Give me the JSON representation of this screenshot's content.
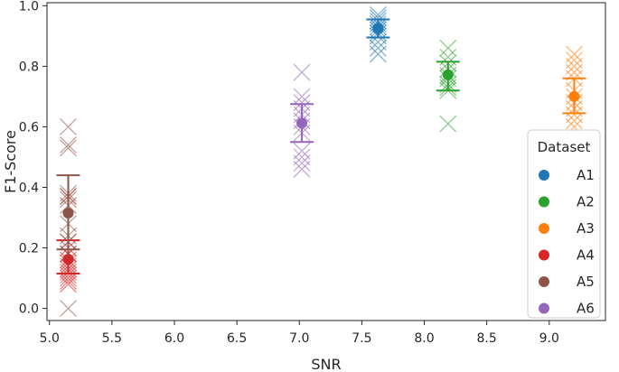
{
  "chart_data": {
    "type": "scatter",
    "title": "",
    "xlabel": "SNR",
    "ylabel": "F1-Score",
    "xlim": [
      4.98,
      9.45
    ],
    "ylim": [
      -0.04,
      1.01
    ],
    "xticks": [
      "5.0",
      "5.5",
      "6.0",
      "6.5",
      "7.0",
      "7.5",
      "8.0",
      "8.5",
      "9.0"
    ],
    "yticks": [
      "0.0",
      "0.2",
      "0.4",
      "0.6",
      "0.8",
      "1.0"
    ],
    "grid": false,
    "legend": {
      "title": "Dataset",
      "placement": "right"
    },
    "series": [
      {
        "name": "A1",
        "color": "#1f77b4",
        "x": 7.63,
        "mean": 0.925,
        "err_low": 0.895,
        "err_high": 0.955,
        "points": [
          0.97,
          0.96,
          0.95,
          0.94,
          0.93,
          0.92,
          0.91,
          0.9,
          0.88,
          0.86,
          0.84
        ]
      },
      {
        "name": "A2",
        "color": "#2ca02c",
        "x": 8.19,
        "mean": 0.772,
        "err_low": 0.72,
        "err_high": 0.815,
        "points": [
          0.86,
          0.83,
          0.81,
          0.79,
          0.77,
          0.76,
          0.74,
          0.73,
          0.72,
          0.61
        ]
      },
      {
        "name": "A3",
        "color": "#ff7f0e",
        "x": 9.2,
        "mean": 0.7,
        "err_low": 0.645,
        "err_high": 0.76,
        "points": [
          0.84,
          0.82,
          0.8,
          0.78,
          0.76,
          0.72,
          0.7,
          0.68,
          0.66,
          0.64,
          0.62,
          0.6
        ]
      },
      {
        "name": "A4",
        "color": "#d62728",
        "x": 5.15,
        "mean": 0.163,
        "err_low": 0.115,
        "err_high": 0.225,
        "points": [
          0.37,
          0.22,
          0.2,
          0.18,
          0.16,
          0.15,
          0.14,
          0.13,
          0.12,
          0.11,
          0.1,
          0.09,
          0.08
        ]
      },
      {
        "name": "A5",
        "color": "#8c564b",
        "x": 5.15,
        "mean": 0.315,
        "err_low": 0.195,
        "err_high": 0.44,
        "points": [
          0.6,
          0.54,
          0.53,
          0.38,
          0.37,
          0.36,
          0.34,
          0.28,
          0.24,
          0.22,
          0.18,
          0.0
        ]
      },
      {
        "name": "A6",
        "color": "#9467bd",
        "x": 7.02,
        "mean": 0.612,
        "err_low": 0.55,
        "err_high": 0.675,
        "points": [
          0.78,
          0.7,
          0.68,
          0.66,
          0.64,
          0.62,
          0.6,
          0.58,
          0.52,
          0.5,
          0.48,
          0.46
        ]
      }
    ]
  }
}
